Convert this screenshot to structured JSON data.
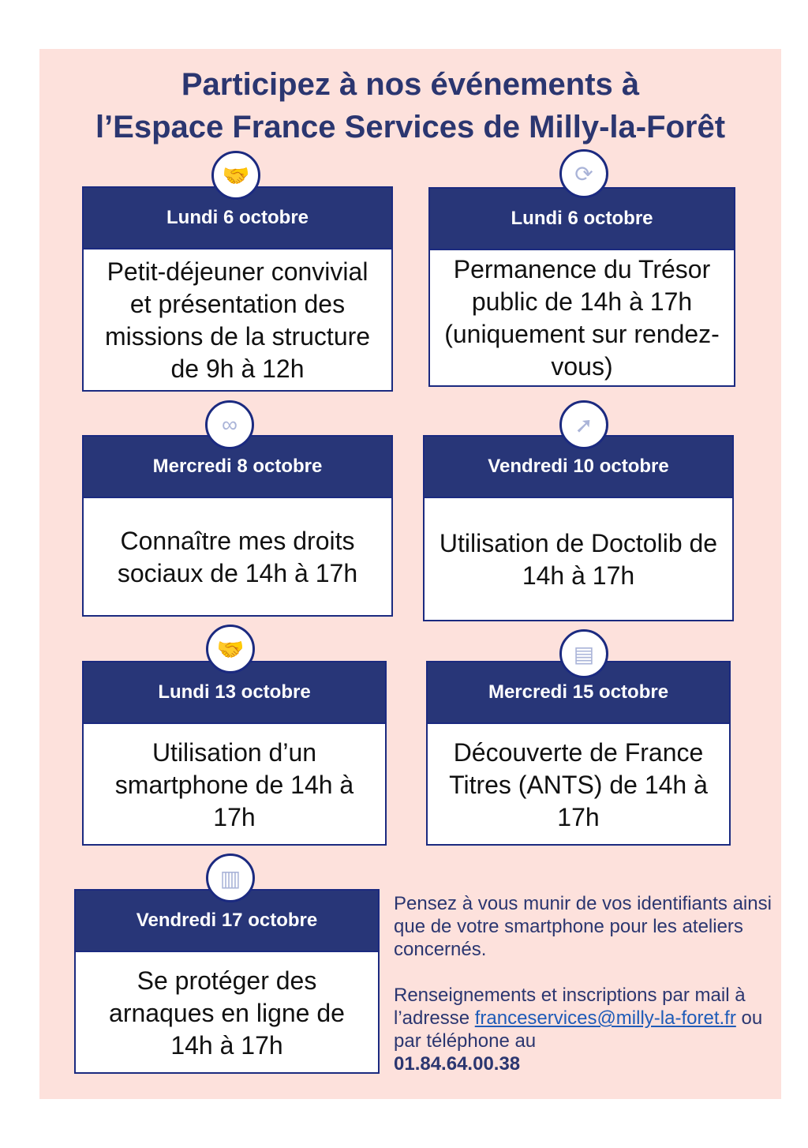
{
  "title_line1": "Participez à nos événements à",
  "title_line2": "l’Espace France Services de Milly-la-Forêt",
  "events": [
    {
      "date": "Lundi 6 octobre",
      "text": "Petit-déjeuner convivial et présentation des missions de la structure de 9h à 12h",
      "icon": "handshake-icon"
    },
    {
      "date": "Lundi 6 octobre",
      "text": "Permanence du Trésor public de 14h à 17h (uniquement sur rendez-vous)",
      "icon": "refresh-icon"
    },
    {
      "date": "Mercredi 8 octobre",
      "text": "Connaître mes droits sociaux de 14h à 17h",
      "icon": "binoculars-icon"
    },
    {
      "date": "Vendredi 10 octobre",
      "text": "Utilisation de Doctolib de 14h à 17h",
      "icon": "compass-icon"
    },
    {
      "date": "Lundi 13 octobre",
      "text": "Utilisation d’un smartphone de 14h à 17h",
      "icon": "handshake-icon"
    },
    {
      "date": "Mercredi 15 octobre",
      "text": "Découverte de France Titres (ANTS) de 14h à 17h",
      "icon": "id-card-icon"
    },
    {
      "date": "Vendredi 17 octobre",
      "text": "Se protéger des arnaques en ligne de 14h à 17h",
      "icon": "documents-icon"
    }
  ],
  "info": {
    "reminder": "Pensez à vous munir de vos identifiants ainsi que de votre smartphone pour les ateliers concernés.",
    "contact_prefix": "Renseignements et inscriptions par mail à l’adresse ",
    "email": "franceservices@milly-la-foret.fr",
    "contact_mid": " ou par téléphone au",
    "phone": "01.84.64.00.38"
  },
  "colors": {
    "background": "#fde1dc",
    "navy": "#283678",
    "link": "#1e5bb8"
  }
}
